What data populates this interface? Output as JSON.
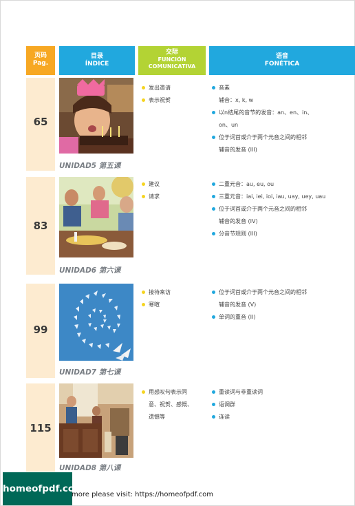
{
  "header": {
    "pag_l1": "页码",
    "pag_l2": "Pag.",
    "indice_l1": "目录",
    "indice_l2": "ÍNDICE",
    "funcion_l1": "交际",
    "funcion_l2": "FUNCIÓN",
    "funcion_l3": "COMUNICATIVA",
    "fonetica_l1": "语音",
    "fonetica_l2": "FONÉTICA"
  },
  "rows": [
    {
      "page": "65",
      "unit": "UNIDAD5 第五课",
      "funcion": [
        "发出邀请",
        "表示祝贺"
      ],
      "fonetica": [
        "音素",
        "辅音：x, k, w",
        "以n结尾的音节的发音：an、en、in、",
        "on、un",
        "位于词首或介于两个元音之间的相邻",
        "辅音的发音 (III)"
      ]
    },
    {
      "page": "83",
      "unit": "UNIDAD6 第六课",
      "funcion": [
        "建议",
        "请求"
      ],
      "fonetica": [
        "二重元音：au, eu, ou",
        "三重元音：iai, iei, ioi, iau, uay, uey, uau",
        "位于词首或介于两个元音之间的相邻",
        "辅音的发音 (IV)",
        "分音节规则 (III)"
      ]
    },
    {
      "page": "99",
      "unit": "UNIDAD7 第七课",
      "funcion": [
        "接待来访",
        "寒暄"
      ],
      "fonetica": [
        "位于词首或介于两个元音之间的相邻",
        "辅音的发音 (V)",
        "单词的重音 (II)"
      ]
    },
    {
      "page": "115",
      "unit": "UNIDAD8 第八课",
      "funcion": [
        "用感叹句表示同",
        "意、祝贺、感慨、",
        "遗憾等"
      ],
      "fonetica": [
        "重读词与非重读词",
        "语调群",
        "连读"
      ]
    }
  ],
  "footer": {
    "logo": "homeofpdf.com",
    "text": "more please visit: https://homeofpdf.com"
  }
}
